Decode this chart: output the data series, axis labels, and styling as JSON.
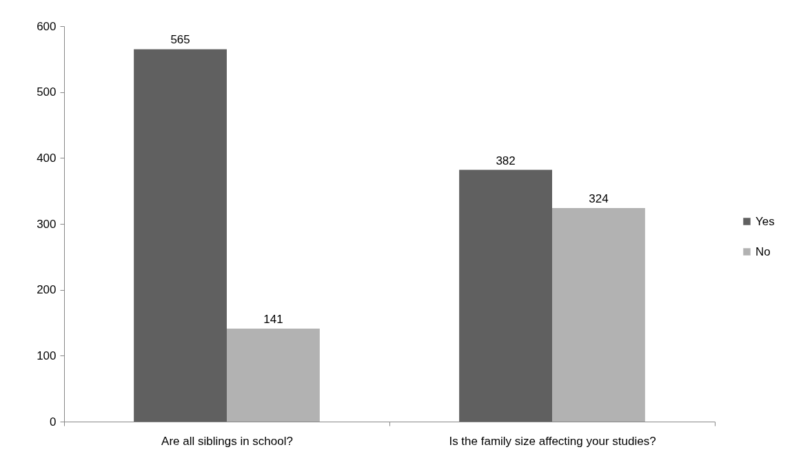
{
  "chart_data": {
    "type": "bar",
    "categories": [
      "Are all siblings in school?",
      "Is the family size affecting your studies?"
    ],
    "series": [
      {
        "name": "Yes",
        "color": "#606060",
        "values": [
          565,
          382
        ]
      },
      {
        "name": "No",
        "color": "#b2b2b2",
        "values": [
          141,
          324
        ]
      }
    ],
    "ylim": [
      0,
      600
    ],
    "yticks": [
      0,
      100,
      200,
      300,
      400,
      500,
      600
    ],
    "grid": false,
    "legend": "right",
    "data_labels": true
  }
}
